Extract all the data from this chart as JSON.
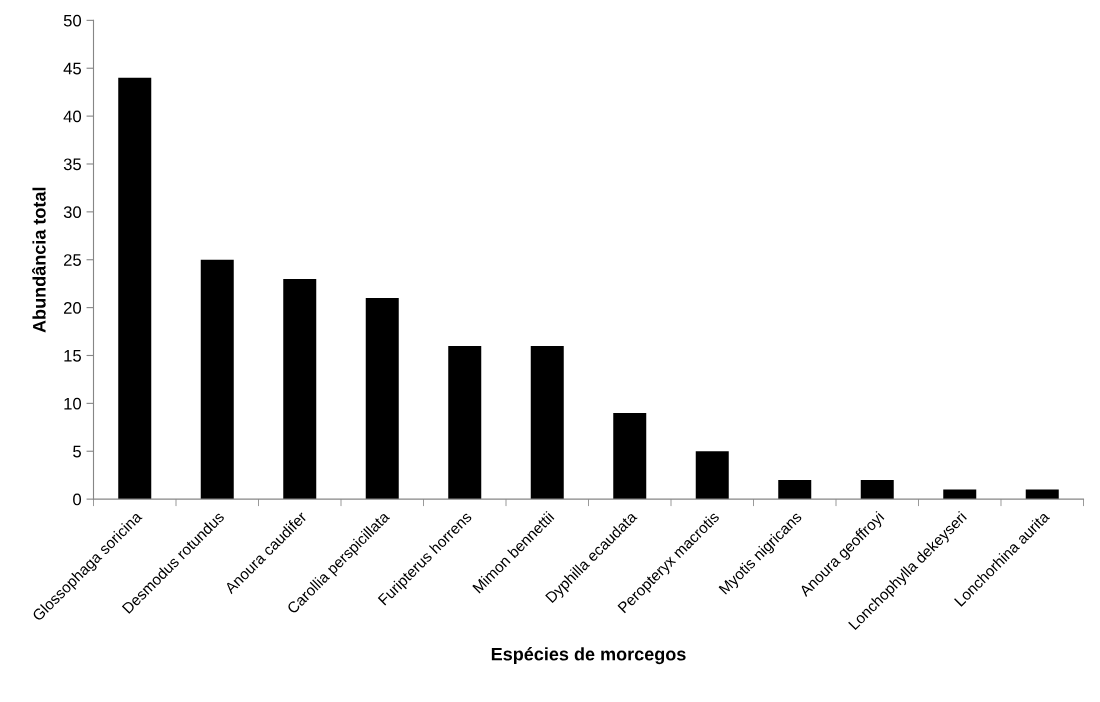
{
  "chart_data": {
    "type": "bar",
    "xlabel": "Espécies de morcegos",
    "ylabel": "Abundância total",
    "categories": [
      "Glossophaga soricina",
      "Desmodus rotundus",
      "Anoura caudifer",
      "Carollia perspicillata",
      "Furipterus horrens",
      "Mimon bennettii",
      "Dyphilla ecaudata",
      "Peropteryx macrotis",
      "Myotis nigricans",
      "Anoura geoffroyi",
      "Lonchophylla dekeyseri",
      "Lonchorhina aurita"
    ],
    "values": [
      44,
      25,
      23,
      21,
      16,
      16,
      9,
      5,
      2,
      2,
      1,
      1
    ],
    "color": "#000000",
    "ylim": [
      0,
      50
    ],
    "yticks": [
      0,
      5,
      10,
      15,
      20,
      25,
      30,
      35,
      40,
      45,
      50
    ],
    "grid": false
  }
}
